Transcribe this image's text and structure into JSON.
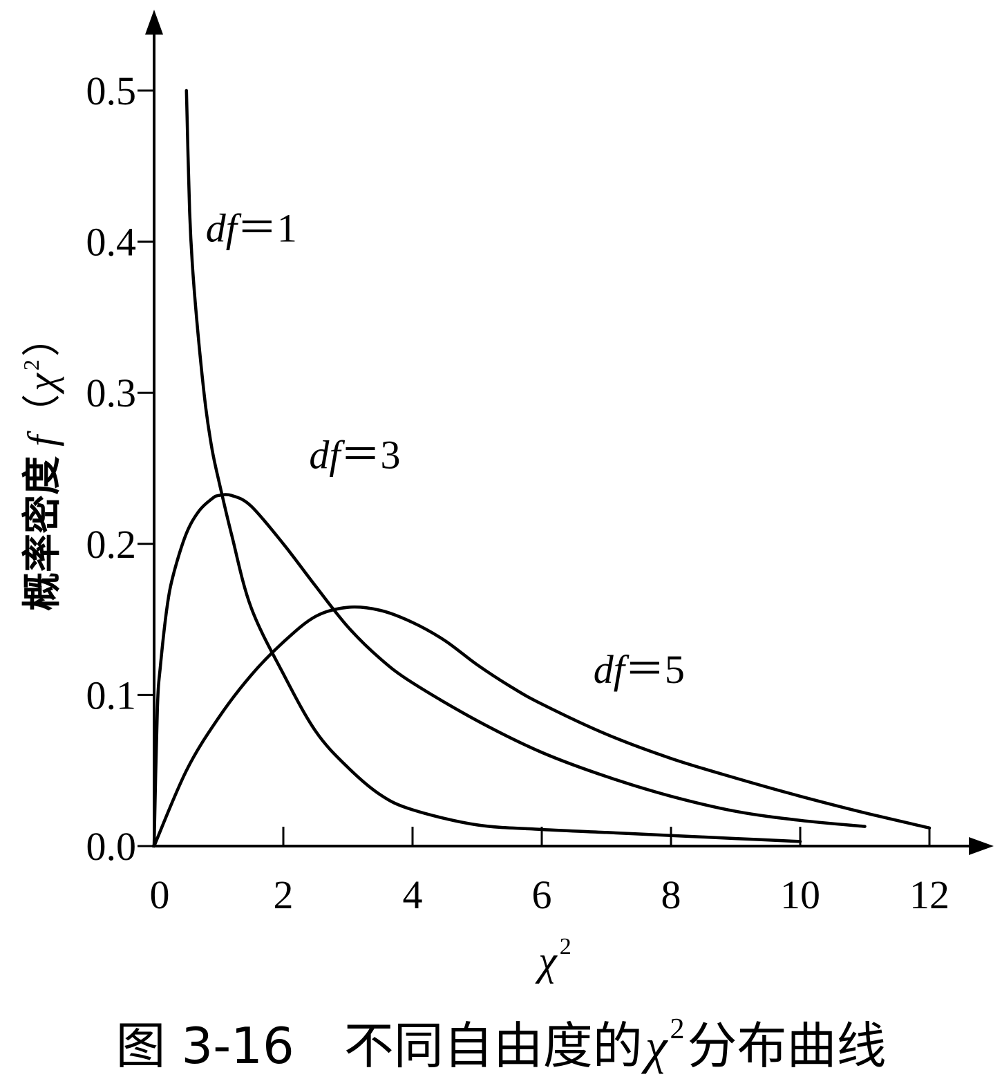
{
  "chart_data": {
    "type": "line",
    "title": "",
    "caption": "图 3-16　不同自由度的χ² 分布曲线",
    "xlabel": "χ²",
    "ylabel": "概率密度 f（χ²）",
    "xlim": [
      0,
      12
    ],
    "ylim": [
      0,
      0.5
    ],
    "x_ticks": [
      "0",
      "2",
      "4",
      "6",
      "8",
      "10",
      "12"
    ],
    "y_ticks": [
      "0.0",
      "0.1",
      "0.2",
      "0.3",
      "0.4",
      "0.5"
    ],
    "grid": false,
    "legend": "none",
    "series": [
      {
        "name": "df=1",
        "x": [
          0.5,
          0.55,
          0.6,
          0.7,
          0.8,
          0.9,
          1.0,
          1.2,
          1.5,
          2.0,
          2.5,
          3.0,
          3.5,
          4.0,
          5.0,
          6.0,
          7.0,
          8.0,
          9.0,
          10.0
        ],
        "y": [
          0.5,
          0.42,
          0.38,
          0.33,
          0.29,
          0.262,
          0.242,
          0.206,
          0.158,
          0.114,
          0.076,
          0.052,
          0.034,
          0.024,
          0.014,
          0.011,
          0.009,
          0.007,
          0.005,
          0.003
        ]
      },
      {
        "name": "df=3",
        "x": [
          0.0,
          0.05,
          0.1,
          0.2,
          0.3,
          0.5,
          0.7,
          0.9,
          1.0,
          1.2,
          1.5,
          2.0,
          2.5,
          3.0,
          3.5,
          4.0,
          5.0,
          6.0,
          7.0,
          8.0,
          9.0,
          10.0,
          11.0
        ],
        "y": [
          0.0,
          0.09,
          0.12,
          0.158,
          0.18,
          0.207,
          0.222,
          0.23,
          0.232,
          0.232,
          0.225,
          0.2,
          0.172,
          0.145,
          0.124,
          0.108,
          0.083,
          0.062,
          0.046,
          0.033,
          0.023,
          0.017,
          0.013
        ]
      },
      {
        "name": "df=5",
        "x": [
          0.0,
          0.5,
          1.0,
          1.5,
          2.0,
          2.5,
          3.0,
          3.5,
          4.0,
          4.5,
          5.0,
          5.5,
          6.0,
          7.0,
          8.0,
          9.0,
          10.0,
          11.0,
          12.0
        ],
        "y": [
          0.0,
          0.05,
          0.085,
          0.113,
          0.135,
          0.152,
          0.158,
          0.156,
          0.148,
          0.136,
          0.12,
          0.106,
          0.094,
          0.074,
          0.058,
          0.045,
          0.033,
          0.022,
          0.012
        ]
      }
    ],
    "annotations": [
      {
        "prefix": "df",
        "suffix": "＝1",
        "x": 0.8,
        "y": 0.4
      },
      {
        "prefix": "df",
        "suffix": "＝3",
        "x": 2.4,
        "y": 0.25
      },
      {
        "prefix": "df",
        "suffix": "＝5",
        "x": 6.8,
        "y": 0.108
      }
    ]
  },
  "labels": {
    "y_prefix": "概率密度",
    "y_func": "f",
    "y_open": "（",
    "y_var": "χ",
    "y_sup": "2",
    "y_close": "）",
    "x_var": "χ",
    "x_sup": "2",
    "caption_prefix": "图 3-16　不同自由度的",
    "caption_var": "χ",
    "caption_sup": "2",
    "caption_suffix": " 分布曲线"
  }
}
